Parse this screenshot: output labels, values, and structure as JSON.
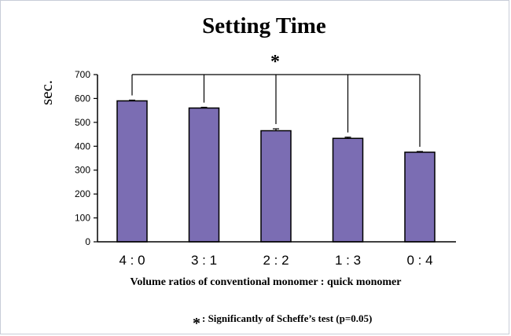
{
  "chart_data": {
    "type": "bar",
    "title": "Setting Time",
    "ylabel": "sec.",
    "xlabel": "Volume ratios of conventional monomer : quick monomer",
    "categories": [
      "4:0",
      "3:1",
      "2:2",
      "1:3",
      "0:4"
    ],
    "series": [
      {
        "values": [
          590,
          560,
          465,
          433,
          375
        ],
        "error": [
          3,
          3,
          8,
          5,
          3
        ]
      }
    ],
    "ylim": [
      0,
      700
    ],
    "yticks": [
      "0",
      "100",
      "200",
      "300",
      "400",
      "500",
      "600",
      "700"
    ],
    "bar_color": "#7b6db3",
    "grid": false,
    "significance": {
      "marker": "*",
      "groups": [
        "4:0",
        "3:1",
        "2:2",
        "1:3",
        "0:4"
      ]
    },
    "footnote": {
      "marker": "*",
      "text": ": Significantly of Scheffe’s test (p=0.05)"
    }
  }
}
